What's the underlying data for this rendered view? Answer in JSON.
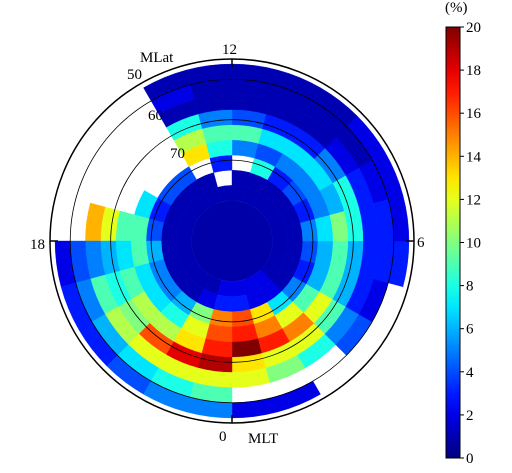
{
  "chart_data": {
    "type": "heatmap",
    "projection": "polar",
    "axis_labels": {
      "mlat": "MLat",
      "mlt": "MLT"
    },
    "mlt_ticks": [
      "12",
      "6",
      "0",
      "18"
    ],
    "mlat_ticks": [
      "50",
      "60",
      "70"
    ],
    "mlat_range": [
      45,
      90
    ],
    "mlat_rings_drawn": [
      50,
      60,
      70
    ],
    "mlt_bin_hours": 1,
    "mlat_bin_edges": [
      90,
      80,
      76.25,
      72.5,
      68.75,
      65,
      61.25,
      57.5,
      53.75,
      50,
      46.25
    ],
    "values_note_rows": "rows ordered from MLat 80-76.25 outward to 50-46.25; columns are MLT 00-01 ... 23-24; null = no data",
    "pole_cap_value": 0.8,
    "values": [
      [
        2,
        2,
        2,
        1,
        1,
        1,
        1,
        1,
        1,
        1,
        1,
        1,
        1,
        1,
        1,
        1,
        1,
        1,
        1,
        1,
        1,
        1,
        1,
        2
      ],
      [
        3,
        2,
        2,
        1,
        1,
        1,
        1,
        1,
        1,
        1,
        1,
        1,
        null,
        1,
        1,
        1,
        1,
        1,
        1,
        1,
        1,
        1,
        2,
        3
      ],
      [
        16,
        13,
        7,
        5,
        3,
        4,
        5,
        3,
        4,
        3,
        8,
        null,
        3,
        null,
        4,
        4,
        3,
        4,
        6,
        5,
        5,
        6,
        10,
        15
      ],
      [
        17,
        15,
        12,
        9,
        6,
        6,
        7,
        5,
        5,
        5,
        4,
        5,
        8,
        13,
        null,
        null,
        7,
        9,
        9,
        7,
        7,
        8,
        12,
        16
      ],
      [
        20,
        17,
        15,
        12,
        9,
        9,
        10,
        6,
        7,
        7,
        7,
        9,
        9,
        11,
        null,
        null,
        null,
        9,
        7,
        9,
        11,
        11,
        13,
        17
      ],
      [
        13,
        12,
        12,
        9,
        6,
        6,
        8,
        8,
        5,
        3,
        3,
        4,
        5,
        8,
        null,
        null,
        null,
        12,
        6,
        8,
        10,
        16,
        18,
        19
      ],
      [
        12,
        10,
        8,
        5,
        3,
        3,
        3,
        3,
        2,
        1,
        1,
        1,
        1,
        1,
        null,
        null,
        null,
        14,
        5,
        9,
        11,
        12,
        12,
        12
      ],
      [
        null,
        null,
        null,
        4,
        2,
        3,
        3,
        2,
        1,
        1,
        1,
        1,
        1,
        2,
        null,
        null,
        null,
        null,
        4,
        5,
        6,
        7,
        8,
        9
      ],
      [
        2,
        2,
        null,
        null,
        null,
        3,
        2,
        2,
        2,
        1,
        1,
        1,
        1,
        1,
        null,
        null,
        null,
        null,
        2,
        3,
        3,
        4,
        5,
        5
      ]
    ],
    "colorbar": {
      "unit_label": "(%)",
      "min": 0,
      "max": 20,
      "ticks": [
        "0",
        "2",
        "4",
        "6",
        "8",
        "10",
        "12",
        "14",
        "16",
        "18",
        "20"
      ],
      "colormap": "jet"
    },
    "colors": {
      "background": "#ffffff",
      "ring": "#000000"
    }
  }
}
